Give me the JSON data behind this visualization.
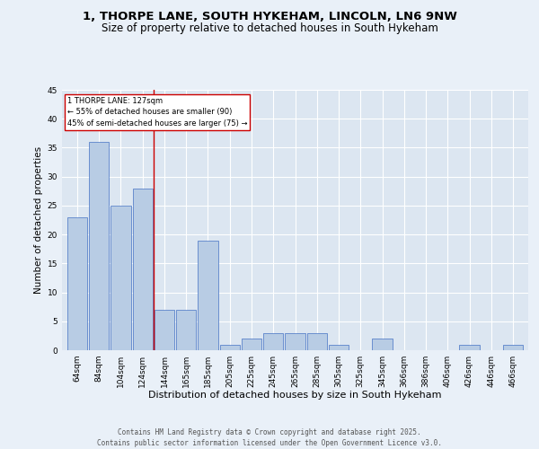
{
  "title_line1": "1, THORPE LANE, SOUTH HYKEHAM, LINCOLN, LN6 9NW",
  "title_line2": "Size of property relative to detached houses in South Hykeham",
  "xlabel": "Distribution of detached houses by size in South Hykeham",
  "ylabel": "Number of detached properties",
  "categories": [
    "64sqm",
    "84sqm",
    "104sqm",
    "124sqm",
    "144sqm",
    "165sqm",
    "185sqm",
    "205sqm",
    "225sqm",
    "245sqm",
    "265sqm",
    "285sqm",
    "305sqm",
    "325sqm",
    "345sqm",
    "366sqm",
    "386sqm",
    "406sqm",
    "426sqm",
    "446sqm",
    "466sqm"
  ],
  "values": [
    23,
    36,
    25,
    28,
    7,
    7,
    19,
    1,
    2,
    3,
    3,
    3,
    1,
    0,
    2,
    0,
    0,
    0,
    1,
    0,
    1
  ],
  "bar_color": "#b8cce4",
  "bar_edge_color": "#4472c4",
  "background_color": "#dce6f1",
  "fig_background_color": "#e9f0f8",
  "grid_color": "#ffffff",
  "vline_x": 3.5,
  "vline_color": "#cc0000",
  "annotation_text": "1 THORPE LANE: 127sqm\n← 55% of detached houses are smaller (90)\n45% of semi-detached houses are larger (75) →",
  "annotation_box_color": "#ffffff",
  "annotation_box_edge_color": "#cc0000",
  "ylim": [
    0,
    45
  ],
  "yticks": [
    0,
    5,
    10,
    15,
    20,
    25,
    30,
    35,
    40,
    45
  ],
  "footer": "Contains HM Land Registry data © Crown copyright and database right 2025.\nContains public sector information licensed under the Open Government Licence v3.0.",
  "title_fontsize": 9.5,
  "subtitle_fontsize": 8.5,
  "xlabel_fontsize": 8,
  "ylabel_fontsize": 7.5,
  "tick_fontsize": 6.5,
  "annotation_fontsize": 6.0,
  "footer_fontsize": 5.5
}
